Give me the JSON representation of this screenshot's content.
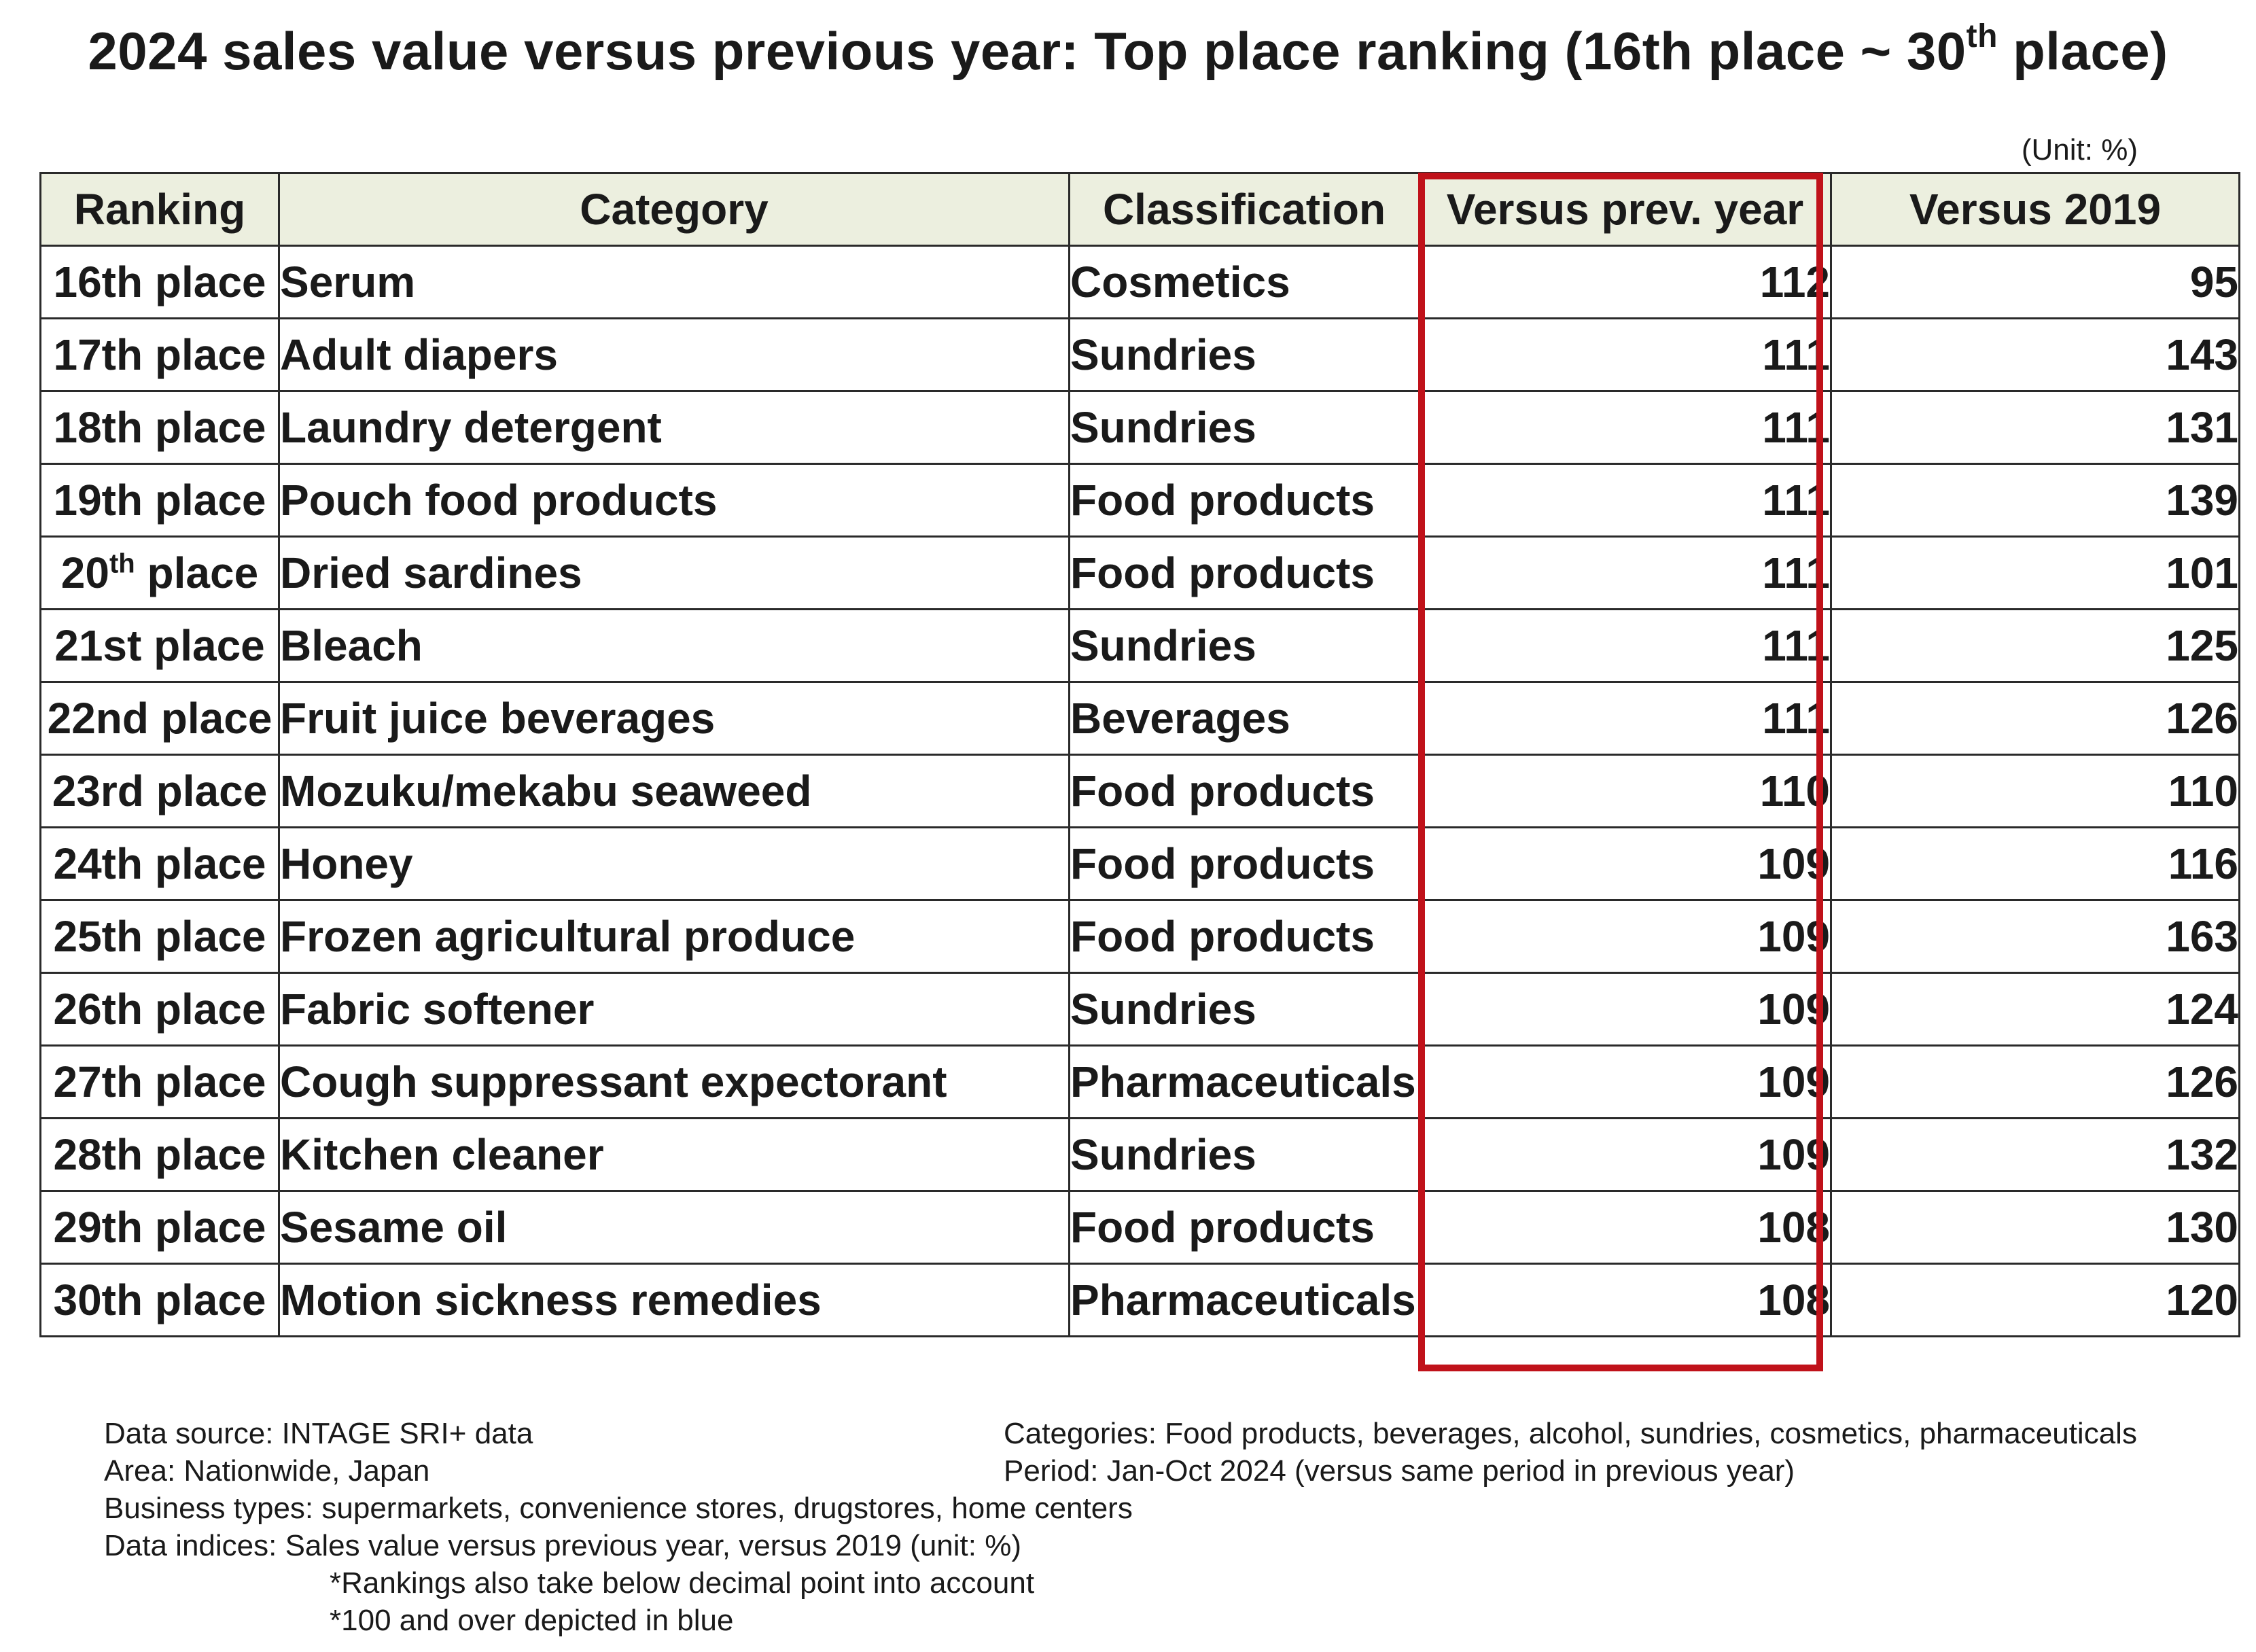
{
  "chart_data": {
    "type": "table",
    "title_pre": "2024 sales value versus previous year: Top place ranking  (16th place ~ 30",
    "title_sup": "th",
    "title_post": " place)",
    "unit": "(Unit: %)",
    "columns": [
      "Ranking",
      "Category",
      "Classification",
      "Versus prev. year",
      "Versus 2019"
    ],
    "highlighted_column": "Versus prev. year",
    "highlight_color": "#c0121a",
    "header_background": "#ecefdf",
    "rows": [
      {
        "rank": "16th place",
        "category": "Serum",
        "classification": "Cosmetics",
        "vs_prev_year": 112,
        "vs_2019": 95
      },
      {
        "rank": "17th place",
        "category": "Adult diapers",
        "classification": "Sundries",
        "vs_prev_year": 111,
        "vs_2019": 143
      },
      {
        "rank": "18th place",
        "category": "Laundry detergent",
        "classification": "Sundries",
        "vs_prev_year": 111,
        "vs_2019": 131
      },
      {
        "rank": "19th place",
        "category": "Pouch food products",
        "classification": "Food products",
        "vs_prev_year": 111,
        "vs_2019": 139
      },
      {
        "rank": "20",
        "rank_sup": "th",
        "rank_post": " place",
        "category": "Dried sardines",
        "classification": "Food products",
        "vs_prev_year": 111,
        "vs_2019": 101
      },
      {
        "rank": "21st place",
        "category": "Bleach",
        "classification": "Sundries",
        "vs_prev_year": 111,
        "vs_2019": 125
      },
      {
        "rank": "22nd place",
        "category": "Fruit juice beverages",
        "classification": "Beverages",
        "vs_prev_year": 111,
        "vs_2019": 126
      },
      {
        "rank": "23rd place",
        "category": "Mozuku/mekabu seaweed",
        "classification": "Food products",
        "vs_prev_year": 110,
        "vs_2019": 110
      },
      {
        "rank": "24th place",
        "category": "Honey",
        "classification": "Food products",
        "vs_prev_year": 109,
        "vs_2019": 116
      },
      {
        "rank": "25th place",
        "category": "Frozen agricultural produce",
        "classification": "Food products",
        "vs_prev_year": 109,
        "vs_2019": 163
      },
      {
        "rank": "26th place",
        "category": "Fabric softener",
        "classification": "Sundries",
        "vs_prev_year": 109,
        "vs_2019": 124
      },
      {
        "rank": "27th place",
        "category": "Cough suppressant expectorant",
        "classification": "Pharmaceuticals",
        "vs_prev_year": 109,
        "vs_2019": 126
      },
      {
        "rank": "28th place",
        "category": "Kitchen cleaner",
        "classification": "Sundries",
        "vs_prev_year": 109,
        "vs_2019": 132
      },
      {
        "rank": "29th place",
        "category": "Sesame oil",
        "classification": "Food products",
        "vs_prev_year": 108,
        "vs_2019": 130
      },
      {
        "rank": "30th place",
        "category": "Motion sickness remedies",
        "classification": "Pharmaceuticals",
        "vs_prev_year": 108,
        "vs_2019": 120
      }
    ]
  },
  "notes": {
    "left": [
      "Data source: INTAGE SRI+ data",
      "Area: Nationwide, Japan",
      "Business types: supermarkets, convenience stores, drugstores, home centers",
      "Data indices: Sales value versus previous year, versus 2019 (unit: %)"
    ],
    "indented": [
      "*Rankings also take below decimal point into account",
      "*100 and over depicted in blue"
    ],
    "right": [
      "Categories: Food products, beverages, alcohol, sundries, cosmetics, pharmaceuticals",
      "Period: Jan-Oct 2024 (versus same period in previous year)"
    ]
  }
}
